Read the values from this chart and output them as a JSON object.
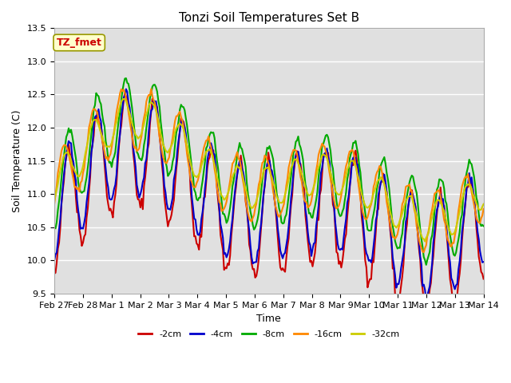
{
  "title": "Tonzi Soil Temperatures Set B",
  "xlabel": "Time",
  "ylabel": "Soil Temperature (C)",
  "ylim": [
    9.5,
    13.5
  ],
  "xlim": [
    0,
    15
  ],
  "bg_color": "#e0e0e0",
  "legend_label": "TZ_fmet",
  "series_colors": {
    "-2cm": "#cc0000",
    "-4cm": "#0000cc",
    "-8cm": "#00aa00",
    "-16cm": "#ff8800",
    "-32cm": "#cccc00"
  },
  "series_order": [
    "-2cm",
    "-4cm",
    "-8cm",
    "-16cm",
    "-32cm"
  ],
  "linewidth": 1.5,
  "xtick_labels": [
    "Feb 27",
    "Feb 28",
    "Mar 1",
    "Mar 2",
    "Mar 3",
    "Mar 4",
    "Mar 5",
    "Mar 6",
    "Mar 7",
    "Mar 8",
    "Mar 9",
    "Mar 10",
    "Mar 11",
    "Mar 12",
    "Mar 13",
    "Mar 14"
  ],
  "ytick_values": [
    9.5,
    10.0,
    10.5,
    11.0,
    11.5,
    12.0,
    12.5,
    13.0,
    13.5
  ],
  "n_points": 360
}
